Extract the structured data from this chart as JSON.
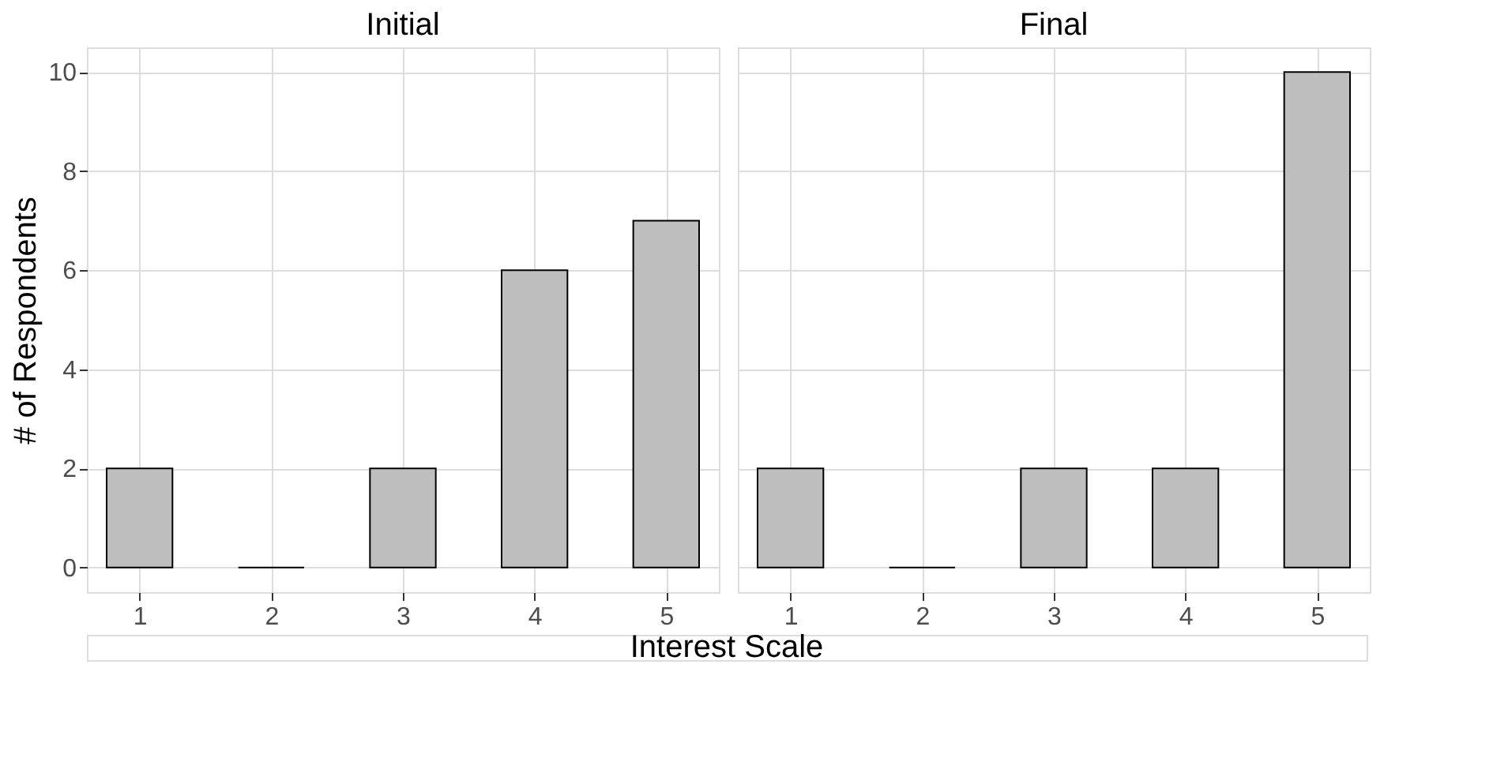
{
  "chart_data": [
    {
      "type": "bar",
      "title": "Initial",
      "x": [
        1,
        2,
        3,
        4,
        5
      ],
      "values": [
        2,
        0,
        2,
        6,
        7
      ],
      "colors": [
        "#bebebe",
        "#000000",
        "#bebebe",
        "#bebebe",
        "#bebebe"
      ],
      "xlim": [
        0.6,
        5.4
      ],
      "xticks": [
        1,
        2,
        3,
        4,
        5
      ],
      "ylim": [
        -0.5,
        10.5
      ],
      "yticks": [
        0,
        2,
        4,
        6,
        8,
        10
      ],
      "ylabel": "# of Respondents",
      "xlabel": "Interest Scale",
      "grid": true
    },
    {
      "type": "bar",
      "title": "Final",
      "x": [
        1,
        2,
        3,
        4,
        5
      ],
      "values": [
        2,
        0,
        2,
        2,
        10
      ],
      "colors": [
        "#bebebe",
        "#000000",
        "#bebebe",
        "#bebebe",
        "#bebebe"
      ],
      "xlim": [
        0.6,
        5.4
      ],
      "xticks": [
        1,
        2,
        3,
        4,
        5
      ],
      "ylim": [
        -0.5,
        10.5
      ],
      "yticks": [
        0,
        2,
        4,
        6,
        8,
        10
      ],
      "tick_labels": "x",
      "grid": true
    }
  ]
}
